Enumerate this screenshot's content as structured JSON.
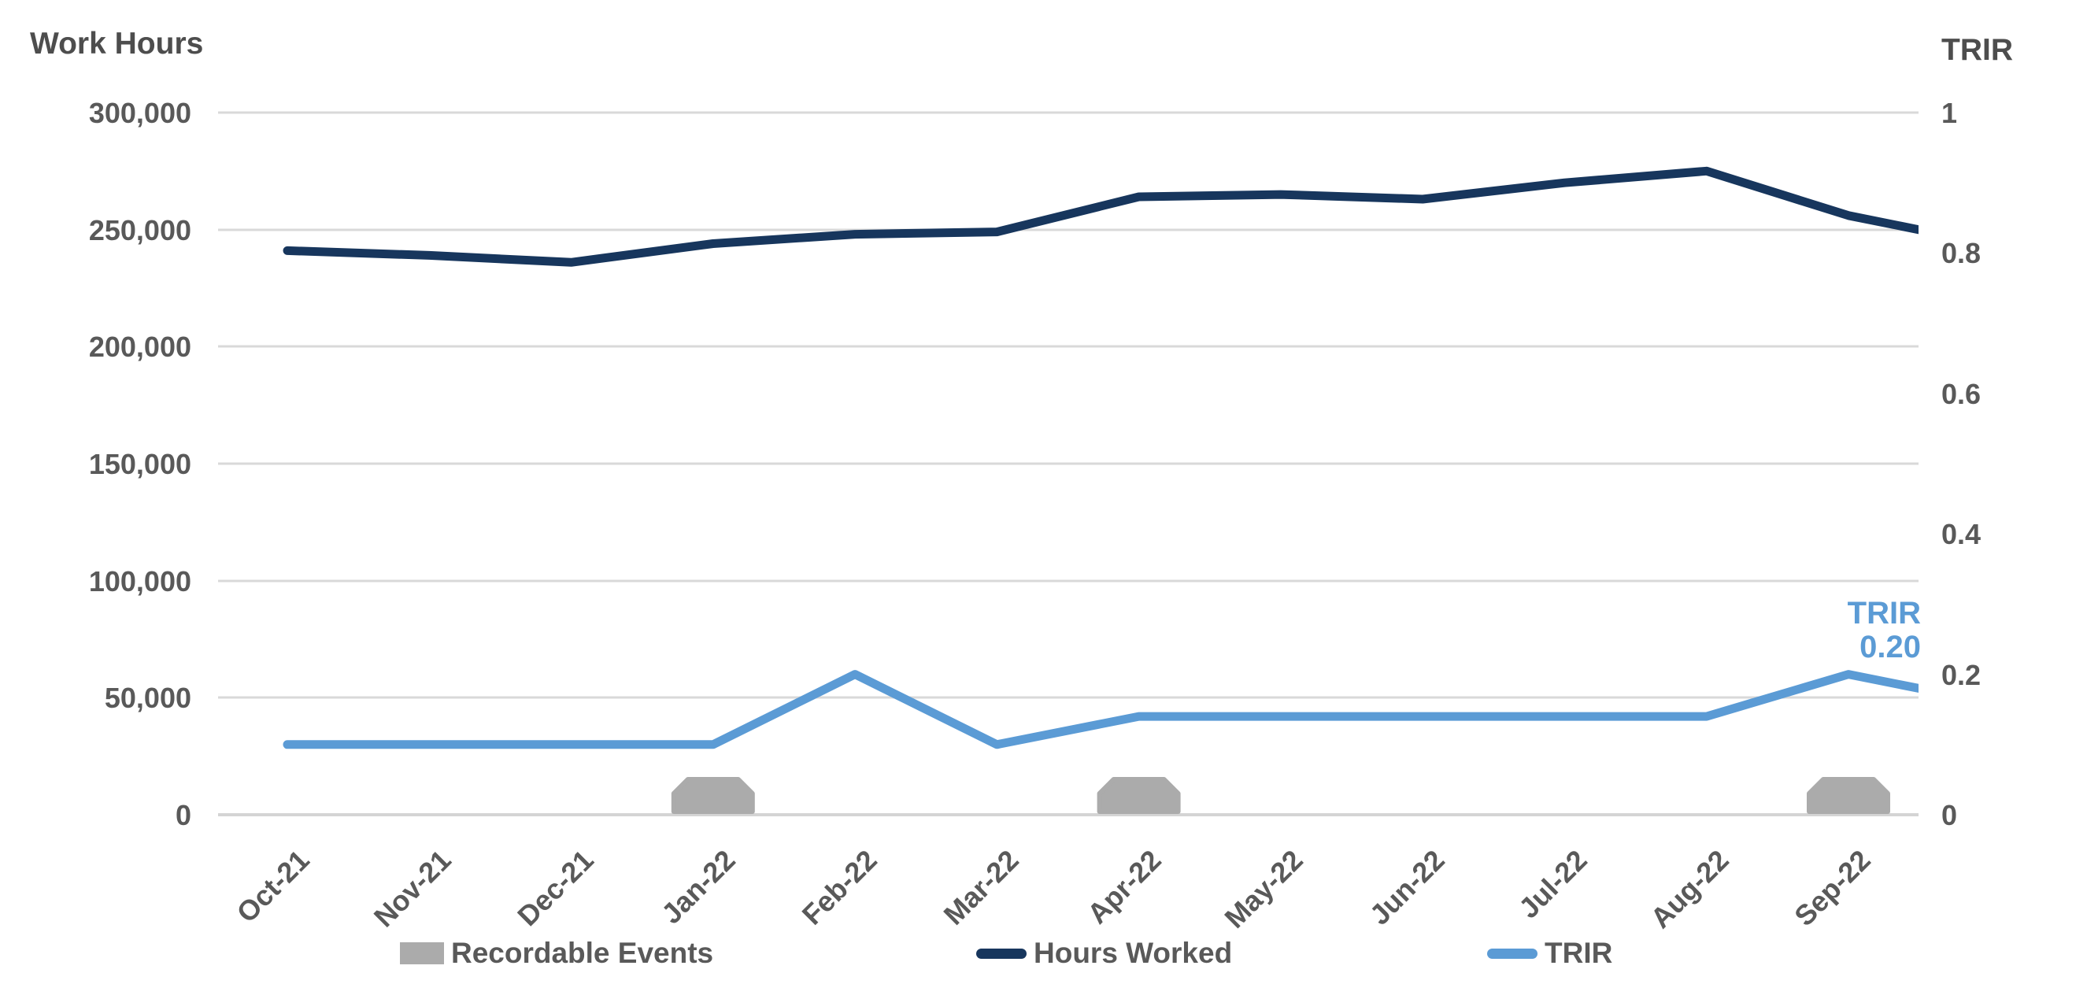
{
  "chart_data": {
    "type": "line+bar combo, dual y-axis, monthly safety statistics",
    "title": "",
    "categories": [
      "Oct-21",
      "Nov-21",
      "Dec-21",
      "Jan-22",
      "Feb-22",
      "Mar-22",
      "Apr-22",
      "May-22",
      "Jun-22",
      "Jul-22",
      "Aug-22",
      "Sep-22"
    ],
    "series": [
      {
        "name": "Hours Worked",
        "type": "line",
        "axis": "left",
        "color": "#17365d",
        "values": [
          241000,
          239000,
          236000,
          244000,
          248000,
          249000,
          264000,
          265000,
          263000,
          270000,
          275000,
          256000
        ],
        "clipped_edge_value": 250000,
        "note": "line continues past Sep-22 and is clipped at the plot right edge"
      },
      {
        "name": "TRIR",
        "type": "line",
        "axis": "right",
        "color": "#5b9bd5",
        "values": [
          0.1,
          0.1,
          0.1,
          0.1,
          0.2,
          0.1,
          0.14,
          0.14,
          0.14,
          0.14,
          0.14,
          0.2
        ],
        "clipped_edge_value": 0.18,
        "note": "line continues past Sep-22 and is clipped at the plot right edge"
      },
      {
        "name": "Recordable Events",
        "type": "bar",
        "color": "#ababab",
        "values": [
          0,
          0,
          0,
          1,
          0,
          0,
          1,
          0,
          0,
          0,
          0,
          1
        ],
        "note": "short flat-topped gray bars shown at Jan-22, Apr-22 and Sep-22"
      }
    ],
    "left_axis": {
      "title": "Work Hours",
      "min": 0,
      "max": 300000,
      "tick_step": 50000,
      "tick_labels": [
        "300,000",
        "250,000",
        "200,000",
        "150,000",
        "100,000",
        "50,000",
        "0"
      ]
    },
    "right_axis": {
      "title": "TRIR",
      "min": 0,
      "max": 1,
      "tick_step": 0.2,
      "tick_labels": [
        "1",
        "0.8",
        "0.6",
        "0.4",
        "0.2",
        "0"
      ]
    },
    "annotation": {
      "line1": "TRIR",
      "line2": "0.20",
      "color": "#5b9bd5",
      "target": "Sep-22 TRIR point"
    },
    "legend_position": "bottom",
    "gridlines": "horizontal only, left axis",
    "colors": {
      "background": "#ffffff",
      "gridline": "#d9d9d9",
      "tick_text": "#595959",
      "title_text": "#4d4d4d"
    }
  }
}
